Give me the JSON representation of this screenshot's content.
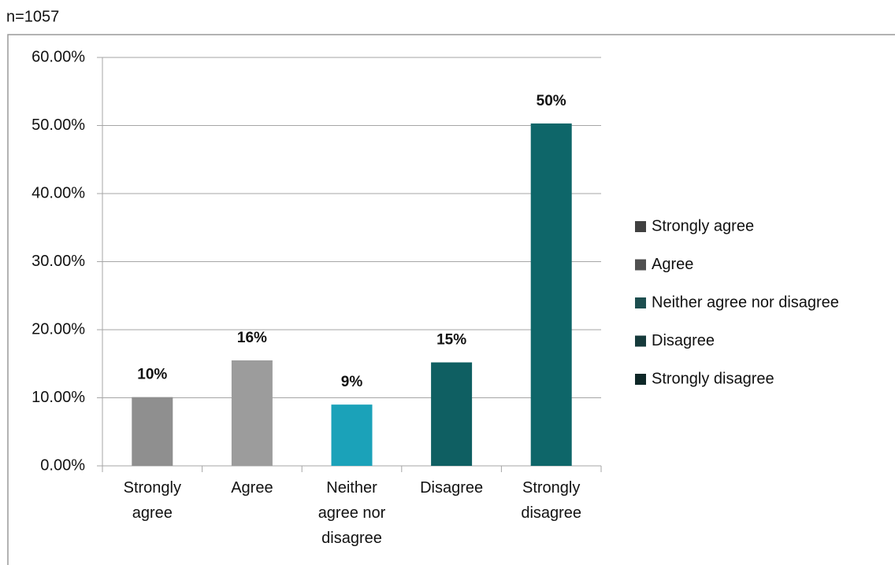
{
  "chart_data": {
    "type": "bar",
    "title": "n=1057",
    "categories": [
      "Strongly agree",
      "Agree",
      "Neither agree nor disagree",
      "Disagree",
      "Strongly disagree"
    ],
    "values": [
      10.1,
      15.5,
      9.0,
      15.2,
      50.3
    ],
    "value_labels": [
      "10%",
      "16%",
      "9%",
      "15%",
      "50%"
    ],
    "colors": [
      "#8f8f8f",
      "#9c9c9c",
      "#1ba2b9",
      "#0f5f62",
      "#0e6669"
    ],
    "legend_colors": [
      "#404040",
      "#505050",
      "#1d4e4f",
      "#163a3b",
      "#0e2727"
    ],
    "ylim": [
      0,
      60
    ],
    "yticks": [
      {
        "value": 0,
        "label": "0.00%"
      },
      {
        "value": 10,
        "label": "10.00%"
      },
      {
        "value": 20,
        "label": "20.00%"
      },
      {
        "value": 30,
        "label": "30.00%"
      },
      {
        "value": 40,
        "label": "40.00%"
      },
      {
        "value": 50,
        "label": "50.00%"
      },
      {
        "value": 60,
        "label": "60.00%"
      }
    ],
    "grid": true,
    "legend": "right"
  }
}
